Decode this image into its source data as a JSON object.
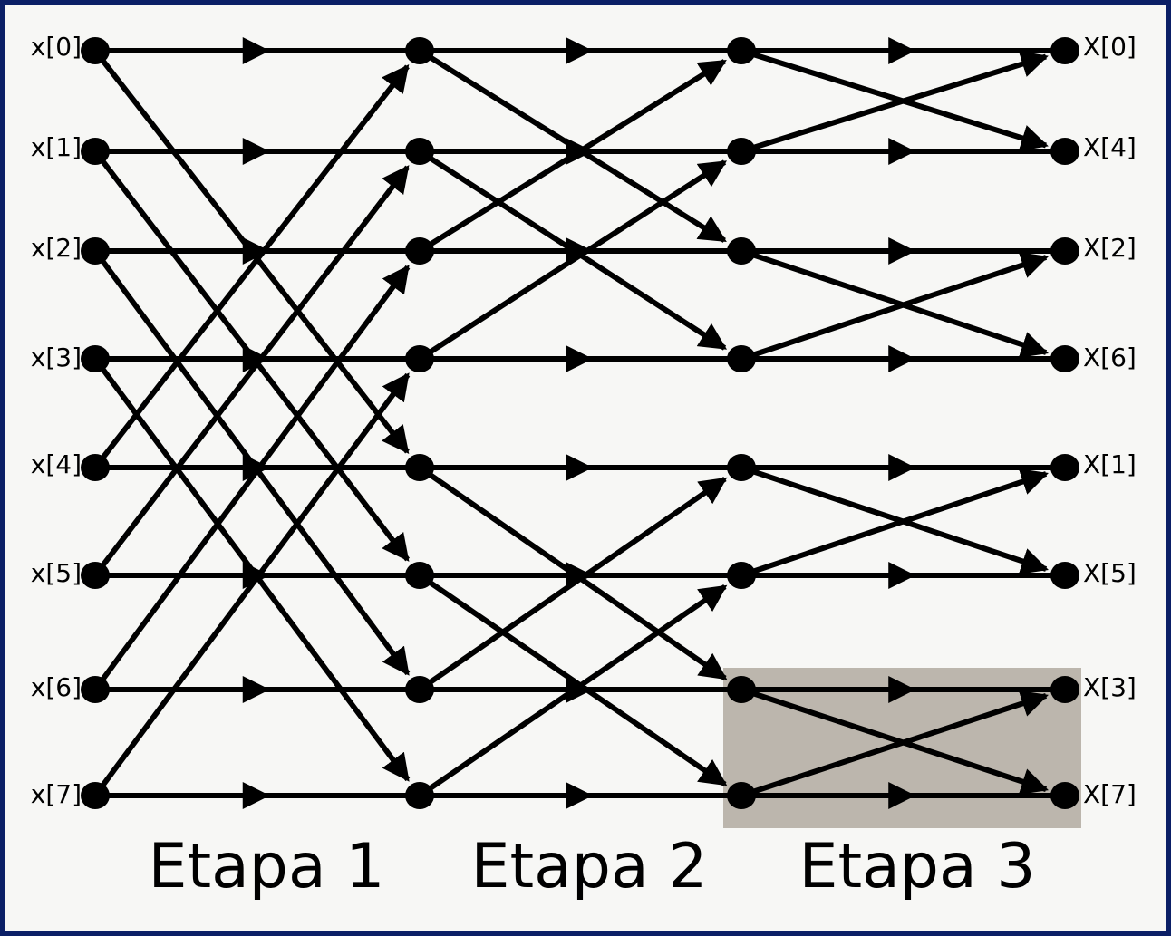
{
  "diagram": {
    "colors": {
      "border": "#0b1f66",
      "background": "#f7f7f5",
      "highlight": "#bcb6ad",
      "ink": "#000000"
    },
    "inputs": [
      "x[0]",
      "x[1]",
      "x[2]",
      "x[3]",
      "x[4]",
      "x[5]",
      "x[6]",
      "x[7]"
    ],
    "outputs": [
      "X[0]",
      "X[4]",
      "X[2]",
      "X[6]",
      "X[1]",
      "X[5]",
      "X[3]",
      "X[7]"
    ],
    "stages": [
      "Etapa 1",
      "Etapa 2",
      "Etapa 3"
    ],
    "butterfly_span": [
      4,
      2,
      1
    ],
    "highlighted": {
      "stage": 3,
      "rows": [
        6,
        7
      ]
    }
  }
}
